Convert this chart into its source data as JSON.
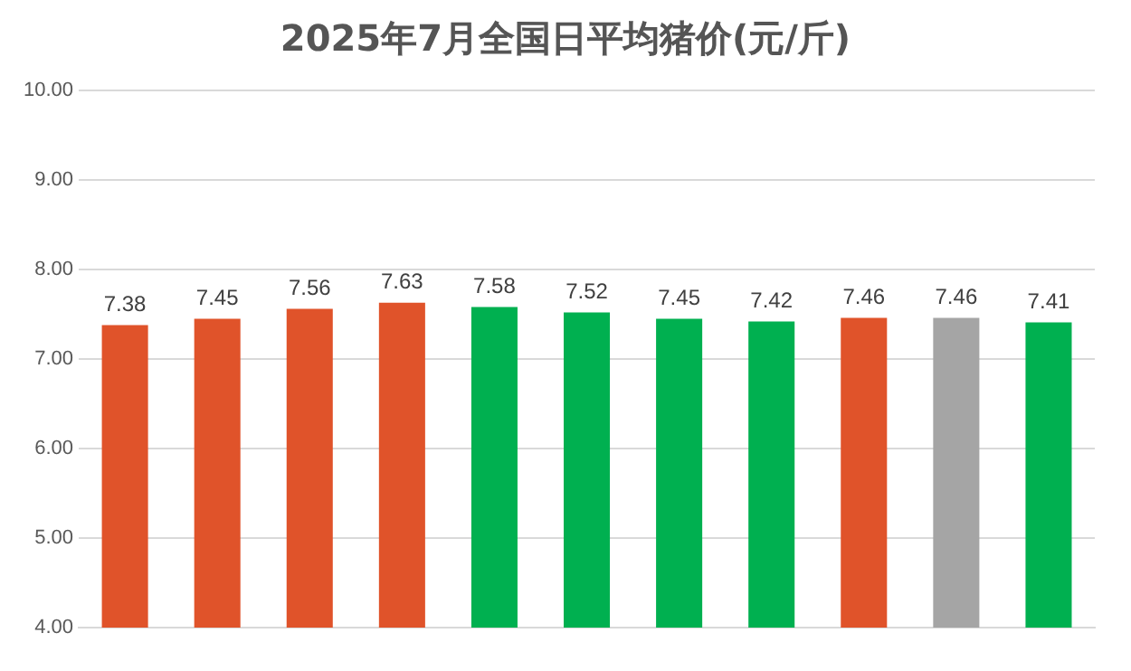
{
  "chart_data": {
    "type": "bar",
    "title": "2025年7月全国日平均猪价(元/斤)",
    "categories": [
      null,
      null,
      null,
      null,
      null,
      null,
      null,
      null,
      null,
      null,
      null
    ],
    "values": [
      7.38,
      7.45,
      7.56,
      7.63,
      7.58,
      7.52,
      7.45,
      7.42,
      7.46,
      7.46,
      7.41
    ],
    "colors": [
      "#e0532a",
      "#e0532a",
      "#e0532a",
      "#e0532a",
      "#00b050",
      "#00b050",
      "#00b050",
      "#00b050",
      "#e0532a",
      "#a5a5a5",
      "#00b050"
    ],
    "ylim": [
      4,
      10
    ],
    "yticks": [
      {
        "value": 4,
        "label": "4.00"
      },
      {
        "value": 5,
        "label": "5.00"
      },
      {
        "value": 6,
        "label": "6.00"
      },
      {
        "value": 7,
        "label": "7.00"
      },
      {
        "value": 8,
        "label": "8.00"
      },
      {
        "value": 9,
        "label": "9.00"
      },
      {
        "value": 10,
        "label": "10.00"
      }
    ],
    "grid": "y",
    "data_labels": true,
    "legend": false
  }
}
